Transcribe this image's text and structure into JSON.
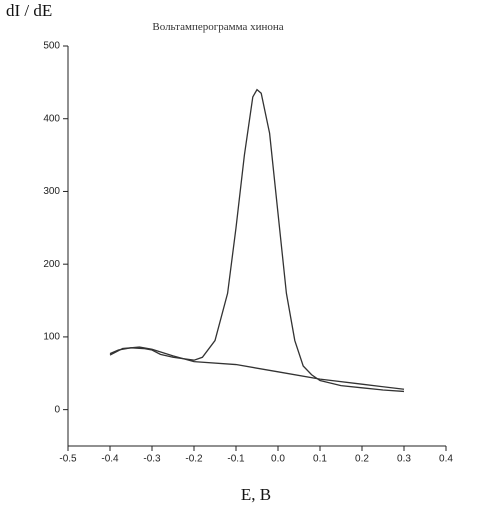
{
  "chart_data": {
    "type": "line",
    "title": "Вольтамперограмма хинона",
    "y_label": "dI / dE",
    "x_label": "E,  B",
    "xlim": [
      -0.5,
      0.4
    ],
    "xticks": [
      -0.5,
      -0.4,
      -0.3,
      -0.2,
      -0.1,
      {
        "value": 0,
        "label": "0.0"
      },
      0.1,
      0.2,
      0.3,
      0.4
    ],
    "ylim": [
      -50,
      500
    ],
    "yticks": [
      0,
      100,
      200,
      300,
      400,
      500
    ],
    "series": [
      {
        "color": "#333333",
        "x": [
          -0.4,
          -0.38,
          -0.35,
          -0.32,
          -0.3,
          -0.28,
          -0.25,
          -0.2,
          -0.18,
          -0.15,
          -0.12,
          -0.1,
          -0.08,
          -0.06,
          -0.05,
          -0.04,
          -0.02,
          0,
          0.02,
          0.04,
          0.06,
          0.08,
          0.1,
          0.15,
          0.2,
          0.25,
          0.3
        ],
        "values": [
          77,
          82,
          85,
          84,
          82,
          76,
          72,
          68,
          72,
          95,
          160,
          250,
          350,
          430,
          440,
          435,
          380,
          270,
          160,
          95,
          60,
          48,
          40,
          33,
          30,
          27,
          25
        ]
      },
      {
        "color": "#333333",
        "x": [
          -0.4,
          -0.37,
          -0.33,
          -0.3,
          -0.25,
          -0.2,
          -0.1,
          0,
          0.1,
          0.2,
          0.3
        ],
        "values": [
          75,
          84,
          86,
          83,
          74,
          66,
          62,
          52,
          42,
          35,
          28
        ]
      }
    ]
  }
}
